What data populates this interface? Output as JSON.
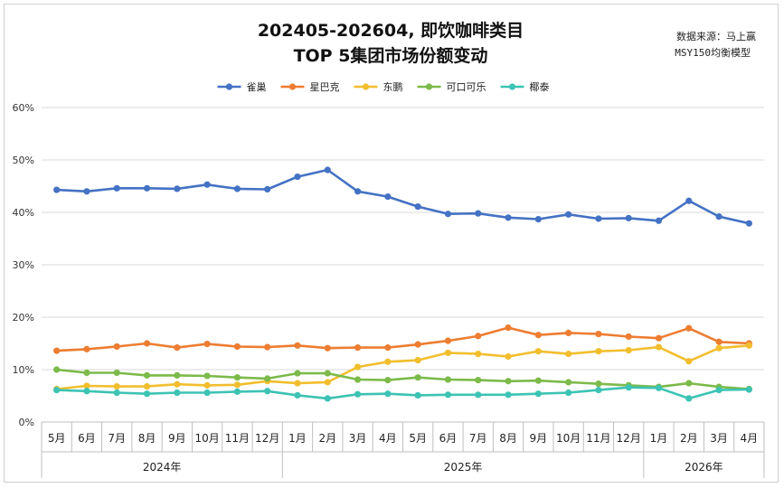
{
  "chart_data": {
    "type": "line",
    "title": "202405-202604, 即饮咖啡类目",
    "subtitle": "TOP 5集团市场份额变动",
    "source_note": [
      "数据来源：马上赢",
      "MSY150均衡模型"
    ],
    "x": [
      "5月",
      "6月",
      "7月",
      "8月",
      "9月",
      "10月",
      "11月",
      "12月",
      "1月",
      "2月",
      "3月",
      "4月",
      "5月",
      "6月",
      "7月",
      "8月",
      "9月",
      "10月",
      "11月",
      "12月",
      "1月",
      "2月",
      "3月",
      "4月"
    ],
    "year_groups": [
      {
        "label": "2024年",
        "start": 0,
        "end": 7
      },
      {
        "label": "2025年",
        "start": 8,
        "end": 19
      },
      {
        "label": "2026年",
        "start": 20,
        "end": 23
      }
    ],
    "ylim": [
      0,
      60
    ],
    "yticks": [
      0,
      10,
      20,
      30,
      40,
      50,
      60
    ],
    "ytick_labels": [
      "0%",
      "10%",
      "20%",
      "30%",
      "40%",
      "50%",
      "60%"
    ],
    "grid": true,
    "legend_position": "top",
    "series": [
      {
        "name": "雀巢",
        "color": "#4472C4",
        "values": [
          44.3,
          44.0,
          44.6,
          44.6,
          44.5,
          45.3,
          44.5,
          44.4,
          46.8,
          48.1,
          44.0,
          43.0,
          41.1,
          39.7,
          39.8,
          39.0,
          38.7,
          39.6,
          38.8,
          38.9,
          38.4,
          42.2,
          39.2,
          37.9
        ]
      },
      {
        "name": "星巴克",
        "color": "#ED7D31",
        "values": [
          13.6,
          13.9,
          14.4,
          15.0,
          14.2,
          14.9,
          14.4,
          14.3,
          14.6,
          14.1,
          14.2,
          14.2,
          14.8,
          15.5,
          16.4,
          18.0,
          16.6,
          17.0,
          16.8,
          16.3,
          16.0,
          17.9,
          15.3,
          15.0
        ]
      },
      {
        "name": "东鹏",
        "color": "#F2BE2E",
        "values": [
          6.3,
          6.9,
          6.8,
          6.8,
          7.2,
          7.0,
          7.1,
          7.8,
          7.4,
          7.6,
          10.5,
          11.5,
          11.8,
          13.2,
          13.0,
          12.5,
          13.5,
          13.0,
          13.5,
          13.7,
          14.3,
          11.6,
          14.1,
          14.6
        ]
      },
      {
        "name": "可口可乐",
        "color": "#7CBA4A",
        "values": [
          10.0,
          9.4,
          9.4,
          8.9,
          8.9,
          8.8,
          8.5,
          8.3,
          9.3,
          9.3,
          8.1,
          8.0,
          8.5,
          8.1,
          8.0,
          7.8,
          7.9,
          7.6,
          7.3,
          7.0,
          6.7,
          7.4,
          6.7,
          6.3
        ]
      },
      {
        "name": "椰泰",
        "color": "#3CC3B4",
        "values": [
          6.1,
          5.9,
          5.6,
          5.4,
          5.6,
          5.6,
          5.8,
          5.9,
          5.1,
          4.5,
          5.3,
          5.4,
          5.1,
          5.2,
          5.2,
          5.2,
          5.4,
          5.6,
          6.1,
          6.6,
          6.5,
          4.5,
          6.1,
          6.2
        ]
      }
    ]
  }
}
